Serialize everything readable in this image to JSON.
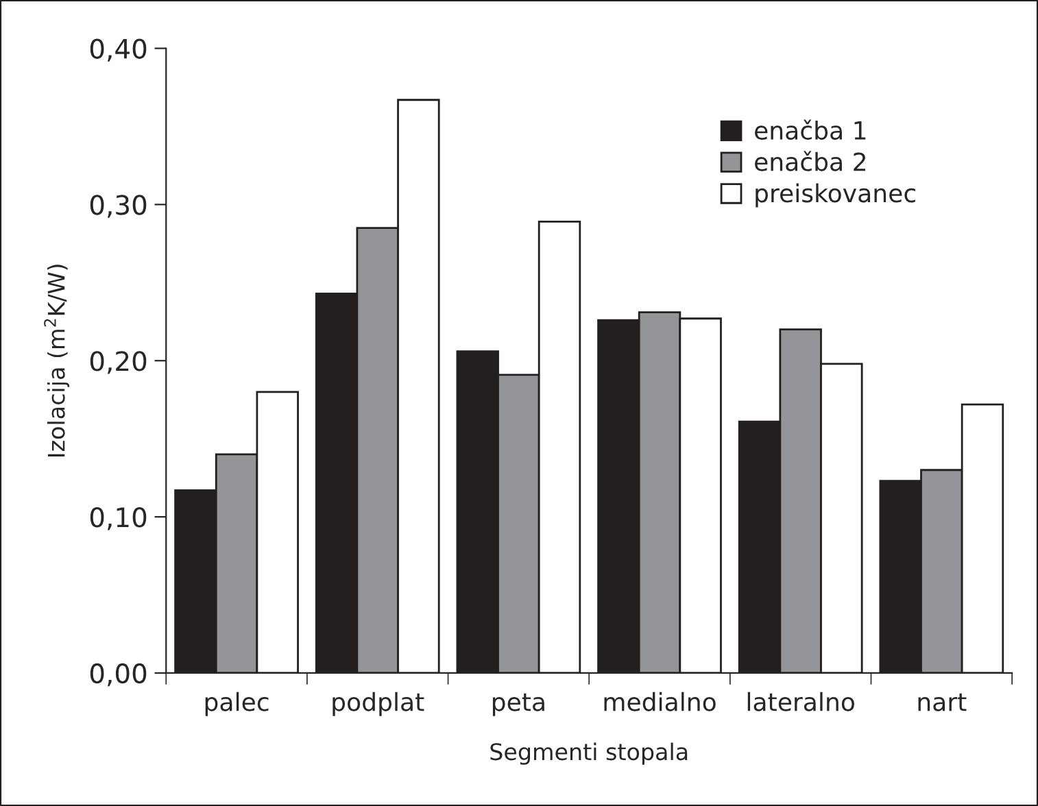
{
  "chart_data": {
    "type": "bar",
    "xlabel": "Segmenti stopala",
    "ylabel": "Izolacija (m$^{2}$K/W)",
    "categories": [
      "palec",
      "podplat",
      "peta",
      "medialno",
      "lateralno",
      "nart"
    ],
    "series": [
      {
        "name": "enačba 1",
        "color": "#231f1e",
        "values": [
          0.117,
          0.243,
          0.206,
          0.226,
          0.161,
          0.123
        ]
      },
      {
        "name": "enačba 2",
        "color": "#939598",
        "values": [
          0.14,
          0.285,
          0.191,
          0.231,
          0.22,
          0.13
        ]
      },
      {
        "name": "preiskovanec",
        "color": "#ffffff",
        "values": [
          0.18,
          0.367,
          0.289,
          0.227,
          0.198,
          0.172
        ]
      }
    ],
    "ylim": [
      0,
      0.4
    ],
    "yticks": [
      {
        "value": 0,
        "label": "0,00"
      },
      {
        "value": 0.1,
        "label": "0,10"
      },
      {
        "value": 0.2,
        "label": "0,20"
      },
      {
        "value": 0.3,
        "label": "0,30"
      },
      {
        "value": 0.4,
        "label": "0,40"
      }
    ],
    "grid": false,
    "legend": "top right"
  }
}
